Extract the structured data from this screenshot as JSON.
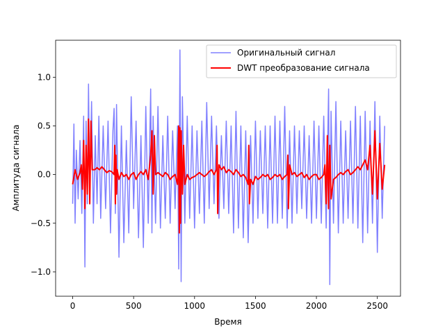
{
  "chart_data": {
    "type": "line",
    "title": "",
    "xlabel": "Время",
    "ylabel": "Амплитуда сигнала",
    "xlim": [
      -140,
      2690
    ],
    "ylim": [
      -1.25,
      1.38
    ],
    "x_ticks": [
      0,
      500,
      1000,
      1500,
      2000,
      2500
    ],
    "y_ticks": [
      -1.0,
      -0.5,
      0.0,
      0.5,
      1.0
    ],
    "x_tick_labels": [
      "0",
      "500",
      "1000",
      "1500",
      "2000",
      "2500"
    ],
    "y_tick_labels": [
      "−1.0",
      "−0.5",
      "0.0",
      "0.5",
      "1.0"
    ],
    "grid": false,
    "legend_position": "top-right",
    "series": [
      {
        "name": "Оригинальный сигнал",
        "color": "#8080ff",
        "x": [
          0,
          10,
          20,
          30,
          45,
          60,
          75,
          90,
          100,
          110,
          120,
          130,
          140,
          155,
          170,
          185,
          200,
          215,
          230,
          250,
          270,
          290,
          310,
          330,
          340,
          350,
          360,
          380,
          400,
          420,
          440,
          460,
          480,
          500,
          520,
          540,
          560,
          580,
          600,
          620,
          640,
          650,
          660,
          680,
          700,
          720,
          740,
          760,
          780,
          800,
          820,
          840,
          860,
          870,
          880,
          890,
          900,
          920,
          940,
          960,
          980,
          1000,
          1020,
          1040,
          1060,
          1080,
          1100,
          1120,
          1140,
          1160,
          1180,
          1200,
          1220,
          1240,
          1260,
          1280,
          1300,
          1320,
          1340,
          1360,
          1380,
          1400,
          1420,
          1440,
          1460,
          1480,
          1500,
          1520,
          1540,
          1560,
          1580,
          1600,
          1620,
          1640,
          1660,
          1680,
          1700,
          1720,
          1740,
          1760,
          1780,
          1800,
          1820,
          1840,
          1860,
          1880,
          1900,
          1920,
          1940,
          1960,
          1980,
          2000,
          2020,
          2040,
          2060,
          2080,
          2100,
          2110,
          2120,
          2140,
          2160,
          2180,
          2200,
          2220,
          2240,
          2260,
          2280,
          2300,
          2320,
          2340,
          2360,
          2380,
          2400,
          2420,
          2440,
          2460,
          2480,
          2500,
          2520,
          2540,
          2560
        ],
        "y": [
          -0.3,
          0.52,
          -0.5,
          0.25,
          -0.25,
          0.35,
          -0.4,
          0.6,
          -0.95,
          0.55,
          -0.3,
          0.93,
          -0.2,
          0.75,
          -0.5,
          0.4,
          -0.3,
          0.6,
          -0.45,
          0.5,
          -0.35,
          0.55,
          -0.6,
          0.45,
          0.68,
          -0.4,
          0.72,
          -0.85,
          0.5,
          -0.7,
          0.35,
          -0.6,
          0.8,
          -0.35,
          0.55,
          -0.65,
          0.4,
          -0.75,
          0.7,
          -0.5,
          0.88,
          -0.6,
          0.6,
          -0.5,
          0.7,
          -0.55,
          0.4,
          -0.45,
          0.6,
          -0.5,
          0.45,
          -0.35,
          0.5,
          -0.97,
          1.28,
          -1.1,
          0.8,
          -0.5,
          0.6,
          -0.45,
          0.5,
          -0.55,
          0.45,
          -0.4,
          0.55,
          -0.5,
          0.74,
          -0.35,
          0.6,
          -0.3,
          0.5,
          -0.45,
          0.4,
          -0.35,
          0.55,
          -0.4,
          0.5,
          -0.6,
          0.65,
          -0.55,
          0.5,
          -0.65,
          0.45,
          -0.7,
          0.4,
          -0.5,
          0.55,
          -0.45,
          0.45,
          -0.4,
          0.5,
          -0.55,
          0.5,
          -0.5,
          0.6,
          -0.5,
          0.55,
          -0.45,
          0.7,
          -0.55,
          0.45,
          -0.5,
          0.5,
          -0.4,
          0.45,
          -0.35,
          0.5,
          -0.45,
          0.4,
          -0.5,
          0.55,
          -0.45,
          0.5,
          -0.5,
          0.6,
          -0.55,
          0.88,
          -1.13,
          0.65,
          -0.5,
          0.75,
          -0.6,
          0.55,
          -0.5,
          0.45,
          -0.45,
          0.55,
          -0.5,
          0.7,
          -0.55,
          0.6,
          -0.7,
          0.65,
          -0.6,
          0.55,
          -0.5,
          0.75,
          -0.8,
          0.6,
          -0.45,
          0.5
        ]
      },
      {
        "name": "DWT преобразование сигнала",
        "color": "#ff0000",
        "x": [
          0,
          20,
          40,
          60,
          70,
          80,
          90,
          100,
          110,
          120,
          130,
          140,
          150,
          160,
          180,
          200,
          220,
          240,
          260,
          280,
          300,
          320,
          340,
          345,
          350,
          355,
          360,
          365,
          380,
          400,
          420,
          440,
          460,
          480,
          500,
          520,
          540,
          560,
          580,
          600,
          620,
          640,
          650,
          660,
          670,
          680,
          700,
          720,
          740,
          760,
          780,
          800,
          820,
          840,
          860,
          870,
          875,
          880,
          885,
          890,
          900,
          910,
          920,
          940,
          960,
          980,
          1000,
          1020,
          1040,
          1060,
          1080,
          1100,
          1120,
          1140,
          1160,
          1180,
          1185,
          1190,
          1200,
          1220,
          1240,
          1260,
          1280,
          1300,
          1320,
          1340,
          1360,
          1380,
          1400,
          1420,
          1440,
          1445,
          1450,
          1460,
          1480,
          1500,
          1520,
          1540,
          1560,
          1580,
          1600,
          1620,
          1640,
          1660,
          1680,
          1700,
          1720,
          1740,
          1760,
          1765,
          1770,
          1780,
          1800,
          1820,
          1840,
          1860,
          1880,
          1900,
          1920,
          1940,
          1960,
          1980,
          2000,
          2020,
          2040,
          2060,
          2070,
          2080,
          2090,
          2100,
          2110,
          2120,
          2140,
          2160,
          2180,
          2200,
          2220,
          2240,
          2260,
          2280,
          2300,
          2320,
          2340,
          2360,
          2380,
          2400,
          2420,
          2440,
          2460,
          2480,
          2500,
          2520,
          2540,
          2560
        ],
        "y": [
          -0.1,
          0.05,
          -0.05,
          0.02,
          0.1,
          -0.15,
          0.35,
          -0.35,
          0.3,
          -0.2,
          0.57,
          -0.3,
          0.55,
          0.05,
          0.05,
          0.07,
          0.05,
          0.08,
          0.05,
          0.02,
          0.04,
          0.03,
          0.0,
          0.3,
          -0.3,
          0.2,
          -0.2,
          0.05,
          -0.05,
          0.02,
          -0.02,
          0.0,
          -0.05,
          0.0,
          0.02,
          -0.05,
          0.0,
          0.03,
          0.0,
          0.05,
          -0.05,
          0.2,
          0.45,
          -0.2,
          0.4,
          0.0,
          0.02,
          0.0,
          -0.02,
          0.02,
          0.0,
          -0.05,
          -0.02,
          0.0,
          -0.1,
          0.5,
          -0.6,
          0.48,
          -0.5,
          0.45,
          -0.2,
          0.3,
          -0.1,
          0.0,
          -0.05,
          -0.03,
          -0.02,
          0.0,
          0.02,
          0.0,
          -0.02,
          0.0,
          0.03,
          0.05,
          0.0,
          0.05,
          0.3,
          -0.4,
          0.1,
          0.05,
          0.08,
          0.02,
          0.05,
          0.03,
          0.0,
          0.05,
          0.02,
          -0.02,
          0.0,
          -0.03,
          -0.1,
          0.3,
          -0.3,
          -0.05,
          -0.1,
          -0.02,
          -0.05,
          -0.03,
          0.0,
          -0.02,
          0.0,
          -0.05,
          -0.03,
          0.0,
          -0.02,
          0.0,
          -0.05,
          -0.02,
          0.0,
          0.2,
          -0.35,
          0.1,
          0.0,
          0.02,
          -0.02,
          0.0,
          0.02,
          -0.03,
          0.0,
          -0.05,
          -0.02,
          0.0,
          0.0,
          -0.05,
          -0.03,
          0.0,
          0.1,
          -0.3,
          0.4,
          -0.35,
          0.3,
          -0.25,
          -0.05,
          -0.03,
          0.0,
          0.02,
          0.0,
          0.03,
          0.05,
          0.0,
          0.02,
          0.05,
          0.08,
          0.05,
          0.1,
          0.15,
          0.05,
          0.3,
          -0.2,
          0.45,
          -0.25,
          0.32,
          -0.15,
          0.1
        ]
      }
    ]
  }
}
